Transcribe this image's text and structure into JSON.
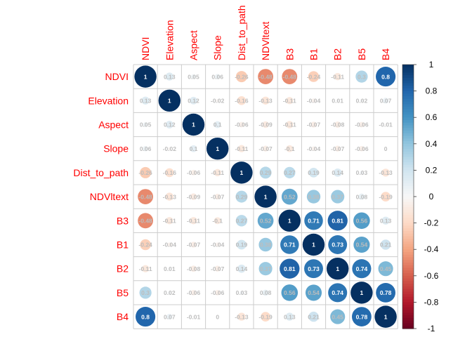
{
  "chart_data": {
    "type": "heatmap",
    "style": "corrplot-circle",
    "variables": [
      "NDVI",
      "Elevation",
      "Aspect",
      "Slope",
      "Dist_to_path",
      "NDVltext",
      "B3",
      "B1",
      "B2",
      "B5",
      "B4"
    ],
    "matrix": [
      [
        1,
        0.13,
        0.05,
        0.06,
        -0.26,
        -0.48,
        -0.48,
        -0.24,
        -0.11,
        0.3,
        0.8
      ],
      [
        0.13,
        1,
        0.12,
        -0.02,
        -0.16,
        -0.13,
        -0.11,
        -0.04,
        0.01,
        0.02,
        0.07
      ],
      [
        0.05,
        0.12,
        1,
        0.1,
        -0.06,
        -0.09,
        -0.11,
        -0.07,
        -0.08,
        -0.06,
        -0.01
      ],
      [
        0.06,
        -0.02,
        0.1,
        1,
        -0.11,
        -0.07,
        -0.1,
        -0.04,
        -0.07,
        -0.06,
        0
      ],
      [
        -0.26,
        -0.16,
        -0.06,
        -0.11,
        1,
        0.29,
        0.27,
        0.19,
        0.14,
        0.03,
        -0.13
      ],
      [
        -0.48,
        -0.13,
        -0.09,
        -0.07,
        0.29,
        1,
        0.52,
        0.38,
        0.37,
        0.08,
        -0.19
      ],
      [
        -0.48,
        -0.11,
        -0.11,
        -0.1,
        0.27,
        0.52,
        1,
        0.71,
        0.81,
        0.56,
        0.13
      ],
      [
        -0.24,
        -0.04,
        -0.07,
        -0.04,
        0.19,
        0.38,
        0.71,
        1,
        0.73,
        0.54,
        0.21
      ],
      [
        -0.11,
        0.01,
        -0.08,
        -0.07,
        0.14,
        0.37,
        0.81,
        0.73,
        1,
        0.74,
        0.45
      ],
      [
        0.3,
        0.02,
        -0.06,
        -0.06,
        0.03,
        0.08,
        0.56,
        0.54,
        0.74,
        1,
        0.78
      ],
      [
        0.8,
        0.07,
        -0.01,
        0,
        -0.13,
        -0.19,
        0.13,
        0.21,
        0.45,
        0.78,
        1
      ]
    ],
    "colorbar": {
      "range": [
        -1,
        1
      ],
      "ticks": [
        "1",
        "0.8",
        "0.6",
        "0.4",
        "0.2",
        "0",
        "-0.2",
        "-0.4",
        "-0.6",
        "-0.8",
        "-1"
      ],
      "tick_values": [
        1,
        0.8,
        0.6,
        0.4,
        0.2,
        0,
        -0.2,
        -0.4,
        -0.6,
        -0.8,
        -1
      ],
      "colors": {
        "negative": "#67001F",
        "neutral": "#F7F7F7",
        "positive": "#053061"
      }
    },
    "label_color": "#FF0000",
    "grid": true
  }
}
